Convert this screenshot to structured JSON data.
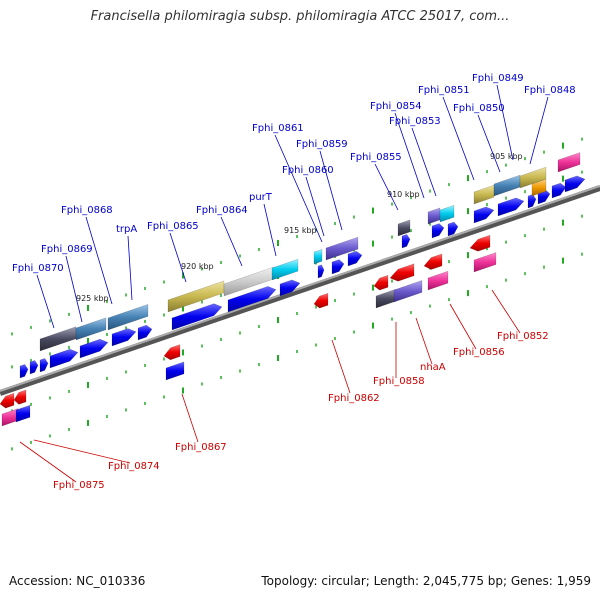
{
  "header": {
    "title": "Francisella philomiragia subsp. philomiragia ATCC 25017, com..."
  },
  "footer": {
    "accession": "Accession: NC_010336",
    "summary": "Topology: circular; Length: 2,045,775 bp; Genes: 1,959"
  },
  "scale_labels": [
    "905 kbp",
    "910 kbp",
    "915 kbp",
    "920 kbp",
    "925 kbp"
  ],
  "top_strand_labels": [
    "Fphi_0849",
    "Fphi_0848",
    "Fphi_0851",
    "Fphi_0850",
    "Fphi_0854",
    "Fphi_0853",
    "Fphi_0855",
    "Fphi_0861",
    "Fphi_0859",
    "Fphi_0860",
    "purT",
    "Fphi_0864",
    "Fphi_0865",
    "Fphi_0868",
    "trpA",
    "Fphi_0869",
    "Fphi_0870"
  ],
  "bottom_strand_labels": [
    "Fphi_0852",
    "Fphi_0856",
    "nhaA",
    "Fphi_0858",
    "Fphi_0862",
    "Fphi_0867",
    "Fphi_0874",
    "Fphi_0875"
  ],
  "colors": {
    "top_label": "#0000cc",
    "bottom_label": "#cc0000",
    "cds_forward": "#0000ee",
    "cds_reverse": "#ee0000",
    "pink": "#ee3399",
    "cyan": "#00ccee",
    "olive": "#c8b850",
    "purple": "#6a5acd",
    "steel": "#4682b4",
    "backbone": "#777777",
    "tick": "#22aa22"
  }
}
